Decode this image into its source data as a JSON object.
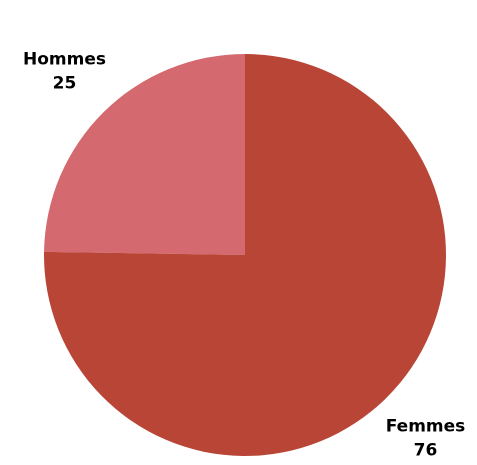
{
  "chart_data": {
    "type": "pie",
    "categories": [
      "Hommes",
      "Femmes"
    ],
    "values": [
      25,
      76
    ],
    "colors": [
      "#d46a70",
      "#b84536"
    ]
  }
}
